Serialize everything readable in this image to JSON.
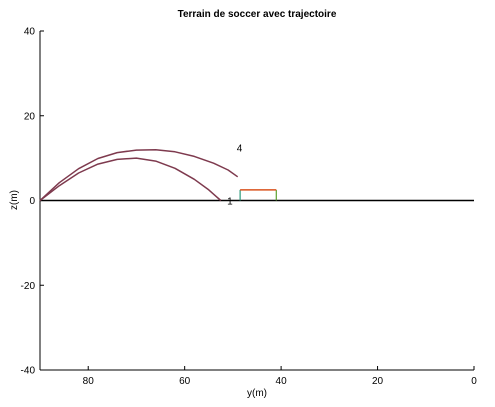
{
  "chart_data": {
    "type": "line",
    "title": "Terrain de soccer avec trajectoire",
    "xlabel": "y(m)",
    "ylabel": "z(m)",
    "xlim": [
      90,
      0
    ],
    "ylim": [
      -40,
      40
    ],
    "x_reversed": true,
    "grid": false,
    "xticks": [
      80,
      60,
      40,
      20,
      0
    ],
    "yticks": [
      40,
      20,
      0,
      -20,
      -40
    ],
    "ground_line": {
      "y": 0,
      "x_range": [
        90,
        0
      ],
      "color": "#000000"
    },
    "goal": {
      "posts": [
        {
          "x": 48.5,
          "y": [
            0,
            2.5
          ],
          "color": "#2a9a7c"
        },
        {
          "x": 41.0,
          "y": [
            0,
            2.5
          ],
          "color": "#5aa02c"
        }
      ],
      "crossbar": {
        "x": [
          48.5,
          41.0
        ],
        "y": 2.5,
        "color": "#d9531e"
      }
    },
    "series": [
      {
        "color": "#7e3a4e",
        "x": [
          90,
          86,
          82,
          78,
          74,
          70,
          66,
          62,
          58,
          55,
          53.5,
          52.5
        ],
        "y": [
          0,
          3.5,
          6.5,
          8.6,
          9.7,
          10.0,
          9.3,
          7.6,
          5.0,
          2.5,
          1.0,
          0
        ]
      },
      {
        "color": "#7e3a4e",
        "x": [
          90,
          86,
          82,
          78,
          74,
          70,
          66,
          62,
          58,
          54,
          51,
          49
        ],
        "y": [
          0,
          4.2,
          7.5,
          9.9,
          11.3,
          11.9,
          12.0,
          11.5,
          10.4,
          8.8,
          7.2,
          5.6
        ]
      }
    ],
    "annotations": [
      {
        "text": "4",
        "x": 49.2,
        "y": 12.5
      },
      {
        "text": "1",
        "x": 51.2,
        "y": 0
      }
    ]
  }
}
